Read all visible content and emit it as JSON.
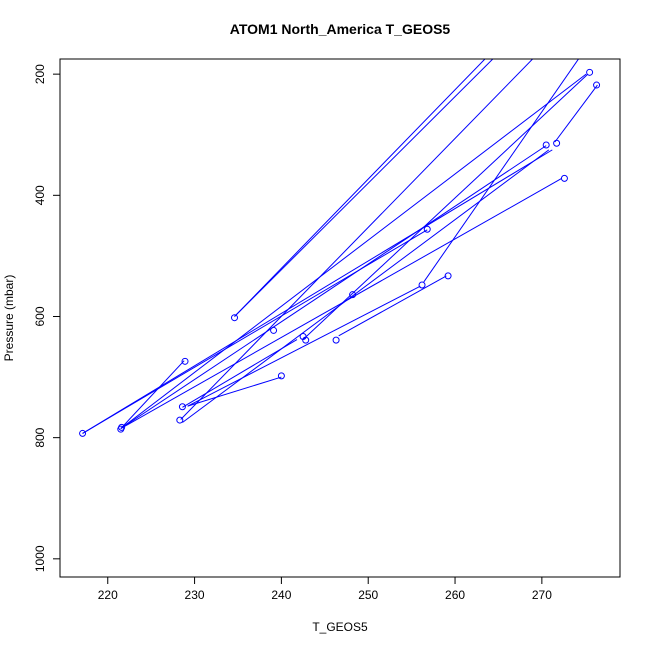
{
  "chart_data": {
    "type": "line",
    "title": "ATOM1 North_America T_GEOS5",
    "xlabel": "T_GEOS5",
    "ylabel": "Pressure (mbar)",
    "xlim": [
      214.5,
      279
    ],
    "ylim": [
      1030,
      175
    ],
    "y_reversed": true,
    "grid": false,
    "point_style": "open-circle",
    "line_color": "#0000ff",
    "x_ticks": [
      220,
      230,
      240,
      250,
      260,
      270
    ],
    "y_ticks": [
      200,
      400,
      600,
      800,
      1000
    ],
    "segments": [
      {
        "from": [
          234.6,
          600
        ],
        "to": [
          266.5,
          130
        ]
      },
      {
        "from": [
          234.6,
          600
        ],
        "to": [
          267.5,
          130
        ]
      },
      {
        "from": [
          217.1,
          793
        ],
        "to": [
          256.8,
          457
        ]
      },
      {
        "from": [
          217.1,
          793
        ],
        "to": [
          271.2,
          325
        ]
      },
      {
        "from": [
          221.5,
          785
        ],
        "to": [
          228.8,
          673
        ]
      },
      {
        "from": [
          221.5,
          785
        ],
        "to": [
          275.1,
          200
        ]
      },
      {
        "from": [
          221.5,
          785
        ],
        "to": [
          272.3,
          372
        ]
      },
      {
        "from": [
          221.5,
          785
        ],
        "to": [
          270.5,
          318
        ]
      },
      {
        "from": [
          228.4,
          770
        ],
        "to": [
          272.0,
          130
        ]
      },
      {
        "from": [
          229.2,
          748
        ],
        "to": [
          240.0,
          700
        ]
      },
      {
        "from": [
          229.2,
          748
        ],
        "to": [
          256.0,
          550
        ]
      },
      {
        "from": [
          228.6,
          750
        ],
        "to": [
          241.8,
          638
        ]
      },
      {
        "from": [
          242.5,
          638
        ],
        "to": [
          275.3,
          200
        ]
      },
      {
        "from": [
          246.6,
          632
        ],
        "to": [
          259.0,
          533
        ]
      },
      {
        "from": [
          256.4,
          543
        ],
        "to": [
          276.4,
          130
        ]
      },
      {
        "from": [
          271.5,
          312
        ],
        "to": [
          276.4,
          218
        ]
      },
      {
        "from": [
          228.6,
          775
        ],
        "to": [
          270.8,
          325
        ]
      }
    ],
    "points": [
      [
        275.5,
        197
      ],
      [
        276.3,
        218
      ],
      [
        270.5,
        317
      ],
      [
        271.7,
        314
      ],
      [
        272.6,
        372
      ],
      [
        256.8,
        456
      ],
      [
        259.2,
        533
      ],
      [
        256.2,
        548
      ],
      [
        248.2,
        564
      ],
      [
        234.6,
        602
      ],
      [
        239.1,
        623
      ],
      [
        242.5,
        633
      ],
      [
        242.8,
        639
      ],
      [
        246.3,
        639
      ],
      [
        228.9,
        674
      ],
      [
        240.0,
        698
      ],
      [
        228.6,
        749
      ],
      [
        228.3,
        771
      ],
      [
        221.6,
        783
      ],
      [
        221.5,
        786
      ],
      [
        217.1,
        793
      ]
    ]
  }
}
